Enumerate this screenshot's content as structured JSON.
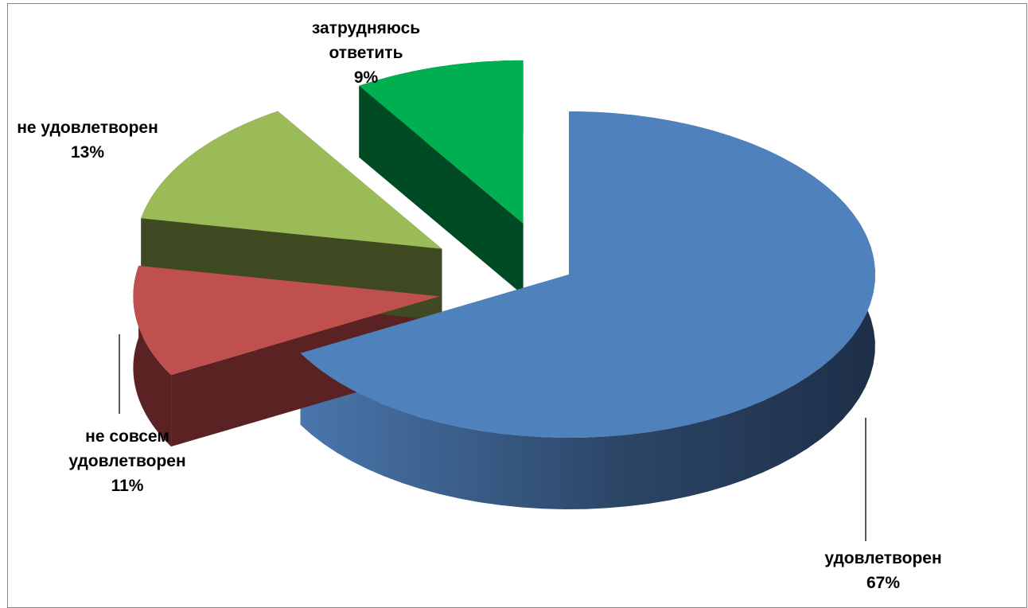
{
  "chart_data": {
    "type": "pie",
    "style": "3d-exploded",
    "title": "",
    "categories": [
      "удовлетворен",
      "не совсем удовлетворен",
      "не удовлетворен",
      "затрудняюсь ответить"
    ],
    "values": [
      67,
      11,
      13,
      9
    ],
    "unit": "%",
    "data_labels": [
      {
        "lines": [
          "удовлетворен",
          "67%"
        ]
      },
      {
        "lines": [
          "не совсем",
          "удовлетворен",
          "11%"
        ]
      },
      {
        "lines": [
          "не удовлетворен",
          "13%"
        ]
      },
      {
        "lines": [
          "затрудняюсь",
          "ответить",
          "9%"
        ]
      }
    ],
    "colors": [
      "#4F81BD",
      "#C0504D",
      "#9BBB59",
      "#00B050"
    ],
    "side_colors": [
      "#1F2F4A",
      "#5A2222",
      "#3F4A22",
      "#004B24"
    ],
    "legend": "none",
    "grid": false
  }
}
